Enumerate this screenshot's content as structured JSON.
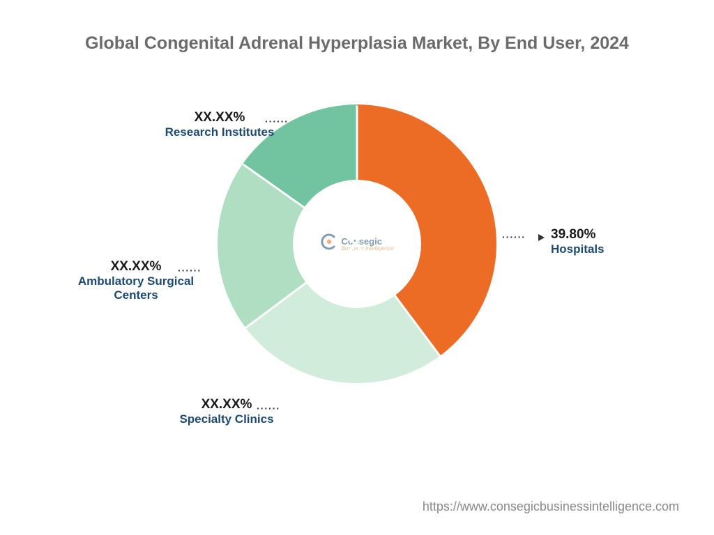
{
  "title": "Global Congenital Adrenal Hyperplasia Market, By End User, 2024",
  "title_fontsize": 25,
  "title_color": "#6b6b6b",
  "background_color": "#ffffff",
  "chart": {
    "type": "donut",
    "inner_radius_ratio": 0.46,
    "start_angle_deg": 0,
    "segments": [
      {
        "key": "hospitals",
        "label": "Hospitals",
        "value_text": "39.80%",
        "value_pct": 39.8,
        "color": "#ec6c26"
      },
      {
        "key": "specialty_clinics",
        "label": "Specialty Clinics",
        "value_text": "XX.XX%",
        "value_pct": 25.0,
        "color": "#d1ecdb"
      },
      {
        "key": "ambulatory",
        "label": "Ambulatory Surgical Centers",
        "value_text": "XX.XX%",
        "value_pct": 20.0,
        "color": "#afdec3"
      },
      {
        "key": "research",
        "label": "Research Institutes",
        "value_text": "XX.XX%",
        "value_pct": 15.2,
        "color": "#72c4a0"
      }
    ],
    "label_name_color": "#1e4a72",
    "label_pct_color": "#1a1a1a",
    "label_pct_fontsize": 19,
    "label_name_fontsize": 17,
    "leader_color": "#333333"
  },
  "center_logo": {
    "brand_top": "Consegic",
    "brand_bottom": "Business Intelligence",
    "mark_color_1": "#1e4a72",
    "mark_color_2": "#ec6c26"
  },
  "footer_url": "https://www.consegicbusinessintelligence.com",
  "footer_fontsize": 18,
  "footer_color": "#8a8a8a"
}
